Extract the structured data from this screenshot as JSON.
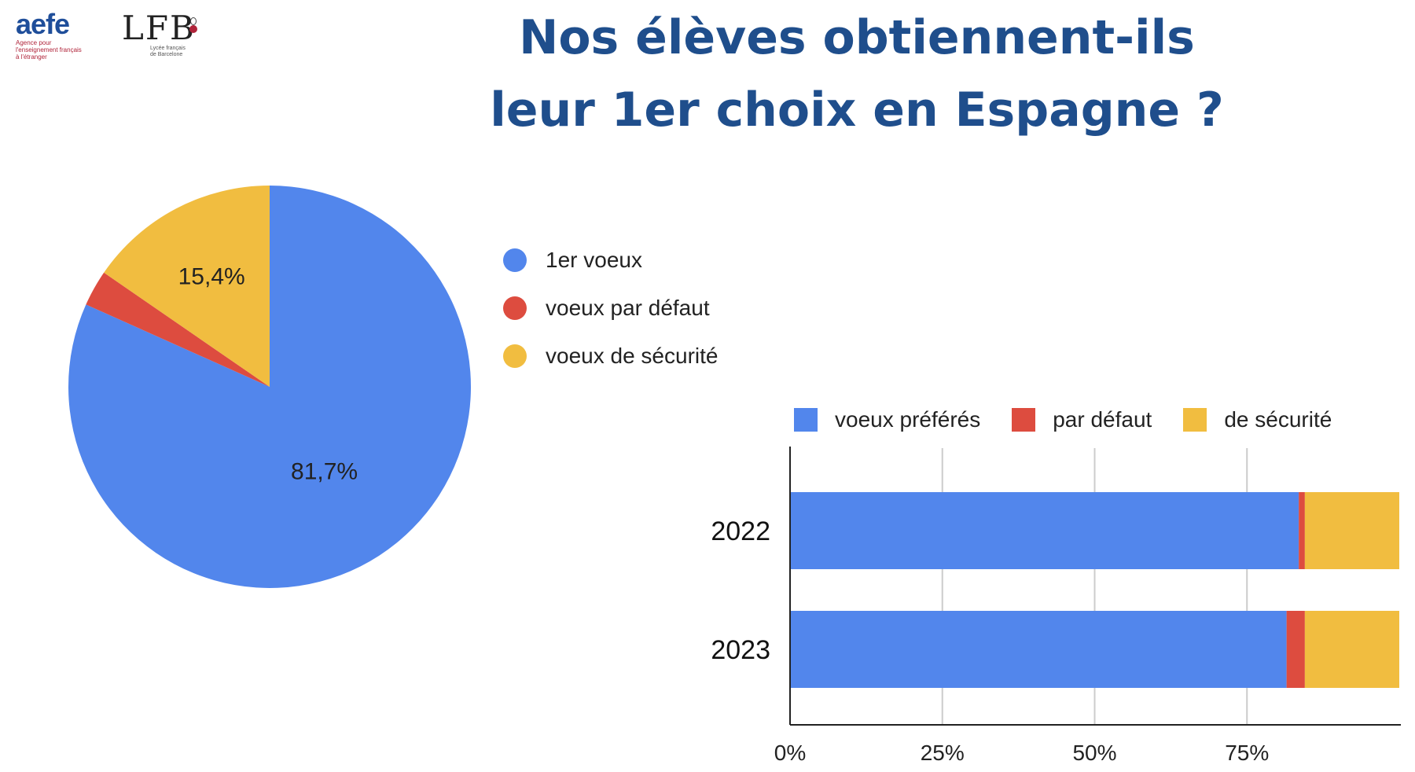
{
  "logos": {
    "aefe_word": "aefe",
    "aefe_tagline": [
      "Agence pour",
      "l'enseignement français",
      "à l'étranger"
    ],
    "lfb_mark": "LFB",
    "lfb_sub": [
      "Lycée français",
      "de Barcelone"
    ]
  },
  "title_lines": [
    "Nos élèves obtiennent-ils",
    "leur 1er choix en Espagne ?"
  ],
  "colors": {
    "blue": "#5286ec",
    "red": "#dd4c3f",
    "yellow": "#f1bd40",
    "title": "#1f4e8c"
  },
  "chart_data": [
    {
      "type": "pie",
      "categories": [
        "1er voeux",
        "voeux par défaut",
        "voeux de sécurité"
      ],
      "values": [
        81.7,
        2.9,
        15.4
      ],
      "data_labels": [
        "81,7%",
        "",
        "15,4%"
      ],
      "colors": [
        "#5286ec",
        "#dd4c3f",
        "#f1bd40"
      ],
      "legend_position": "right"
    },
    {
      "type": "bar",
      "orientation": "horizontal",
      "stacked": true,
      "categories": [
        "2022",
        "2023"
      ],
      "series": [
        {
          "name": "voeux préférés",
          "values": [
            83.5,
            81.5
          ],
          "color": "#5286ec"
        },
        {
          "name": "par défaut",
          "values": [
            1.0,
            3.0
          ],
          "color": "#dd4c3f"
        },
        {
          "name": "de sécurité",
          "values": [
            15.5,
            15.5
          ],
          "color": "#f1bd40"
        }
      ],
      "xlim": [
        0,
        100
      ],
      "xticks": [
        0,
        25,
        50,
        75
      ],
      "xtick_labels": [
        "0%",
        "25%",
        "50%",
        "75%"
      ],
      "grid": true,
      "legend_position": "top"
    }
  ]
}
